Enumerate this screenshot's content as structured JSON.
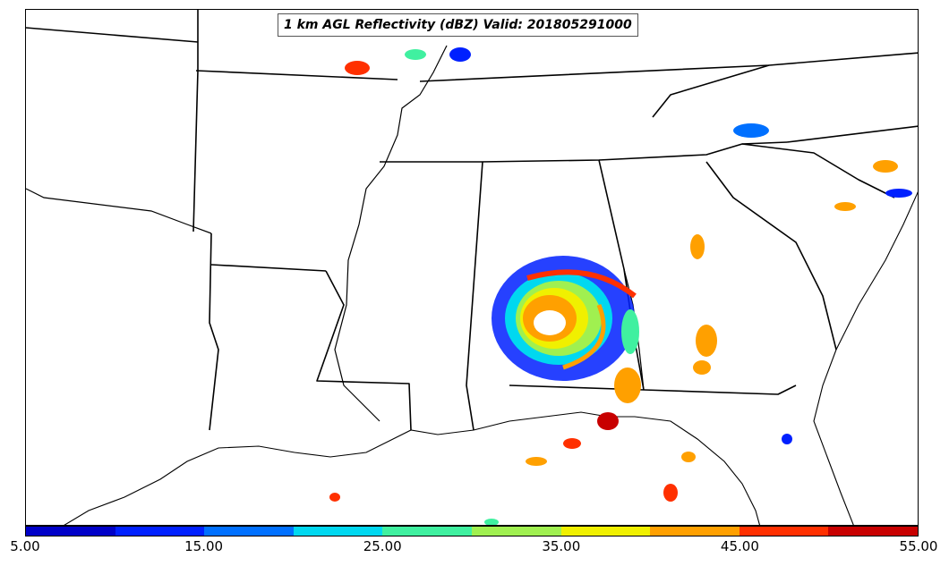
{
  "title": "1 km AGL Reflectivity (dBZ) Valid: 201805291000",
  "colorbar": {
    "colors": [
      "#0000c8",
      "#0020ff",
      "#0070ff",
      "#00d8f0",
      "#40f0a0",
      "#a0f050",
      "#f0f000",
      "#ffa000",
      "#ff3000",
      "#c80000"
    ],
    "tick_labels": [
      "5.00",
      "15.00",
      "25.00",
      "35.00",
      "45.00",
      "55.00"
    ]
  }
}
